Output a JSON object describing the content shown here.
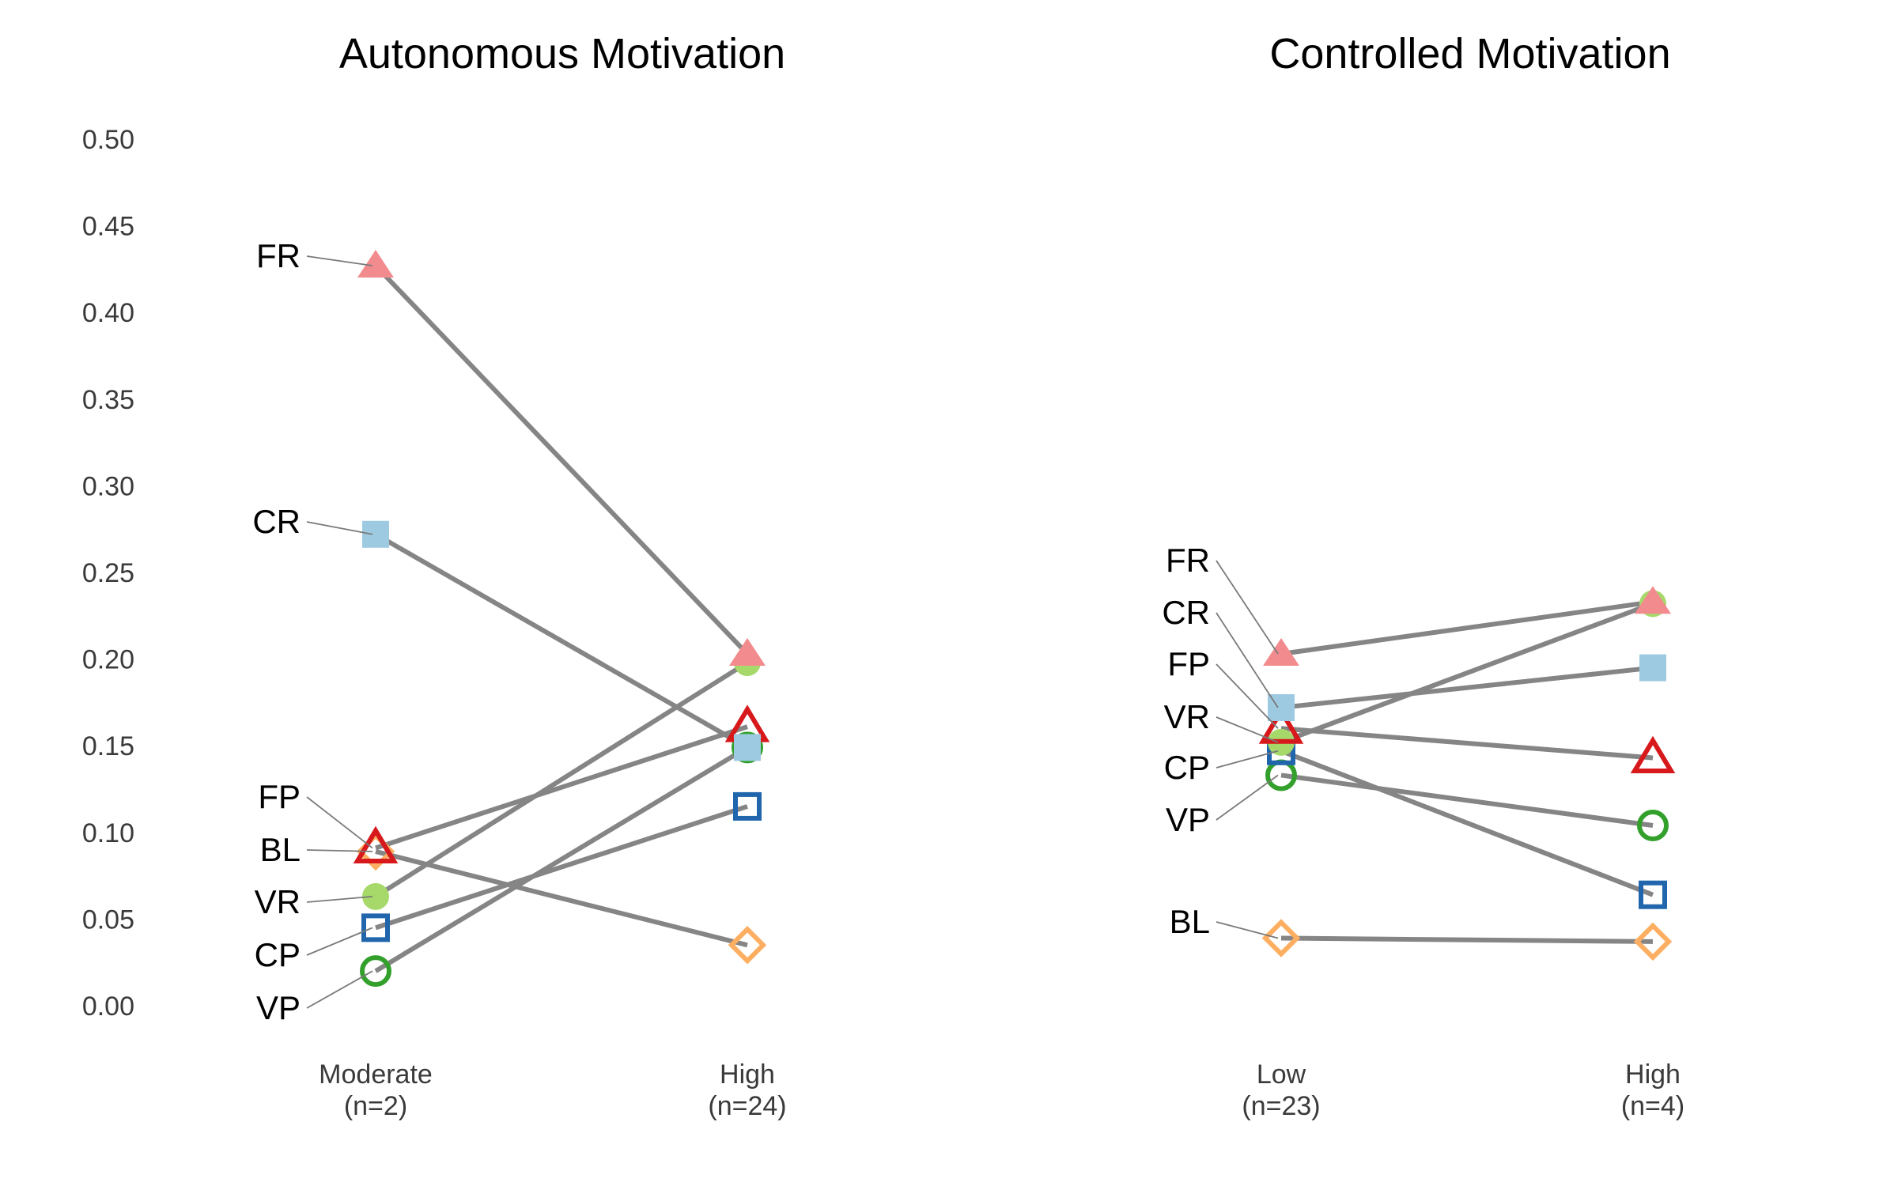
{
  "chart_data": {
    "type": "line",
    "ylim": [
      0,
      0.5
    ],
    "yticks": [
      "0.00",
      "0.05",
      "0.10",
      "0.15",
      "0.20",
      "0.25",
      "0.30",
      "0.35",
      "0.40",
      "0.45",
      "0.50"
    ],
    "grid": false,
    "legend": "none",
    "series_styles": {
      "FR": {
        "marker": "triangle",
        "filled": true,
        "color": "#F28B8E"
      },
      "CR": {
        "marker": "square",
        "filled": true,
        "color": "#9ECAE1"
      },
      "FP": {
        "marker": "triangle",
        "filled": false,
        "color": "#D7191C"
      },
      "BL": {
        "marker": "diamond",
        "filled": false,
        "color": "#FDAE61"
      },
      "VR": {
        "marker": "circle",
        "filled": true,
        "color": "#A6D96A"
      },
      "CP": {
        "marker": "square",
        "filled": false,
        "color": "#2166AC"
      },
      "VP": {
        "marker": "circle",
        "filled": false,
        "color": "#33A02C"
      }
    },
    "panels": [
      {
        "title": "Autonomous Motivation",
        "categories": [
          "Moderate\n(n=2)",
          "High\n(n=24)"
        ],
        "series": [
          {
            "name": "FR",
            "values": [
              0.427,
              0.203
            ]
          },
          {
            "name": "CR",
            "values": [
              0.272,
              0.149
            ]
          },
          {
            "name": "FP",
            "values": [
              0.091,
              0.161
            ]
          },
          {
            "name": "BL",
            "values": [
              0.089,
              0.035
            ]
          },
          {
            "name": "VR",
            "values": [
              0.063,
              0.198
            ]
          },
          {
            "name": "CP",
            "values": [
              0.045,
              0.115
            ]
          },
          {
            "name": "VP",
            "values": [
              0.02,
              0.149
            ]
          }
        ],
        "label_order": [
          "FR",
          "CR",
          "FP",
          "BL",
          "VR",
          "CP",
          "VP"
        ]
      },
      {
        "title": "Controlled Motivation",
        "categories": [
          "Low\n(n=23)",
          "High\n(n=4)"
        ],
        "series": [
          {
            "name": "FR",
            "values": [
              0.203,
              0.233
            ]
          },
          {
            "name": "CR",
            "values": [
              0.172,
              0.195
            ]
          },
          {
            "name": "FP",
            "values": [
              0.16,
              0.143
            ]
          },
          {
            "name": "VR",
            "values": [
              0.152,
              0.232
            ]
          },
          {
            "name": "CP",
            "values": [
              0.147,
              0.064
            ]
          },
          {
            "name": "VP",
            "values": [
              0.133,
              0.104
            ]
          },
          {
            "name": "BL",
            "values": [
              0.039,
              0.037
            ]
          }
        ],
        "label_order": [
          "FR",
          "CR",
          "FP",
          "VR",
          "CP",
          "VP",
          "BL"
        ]
      }
    ]
  }
}
